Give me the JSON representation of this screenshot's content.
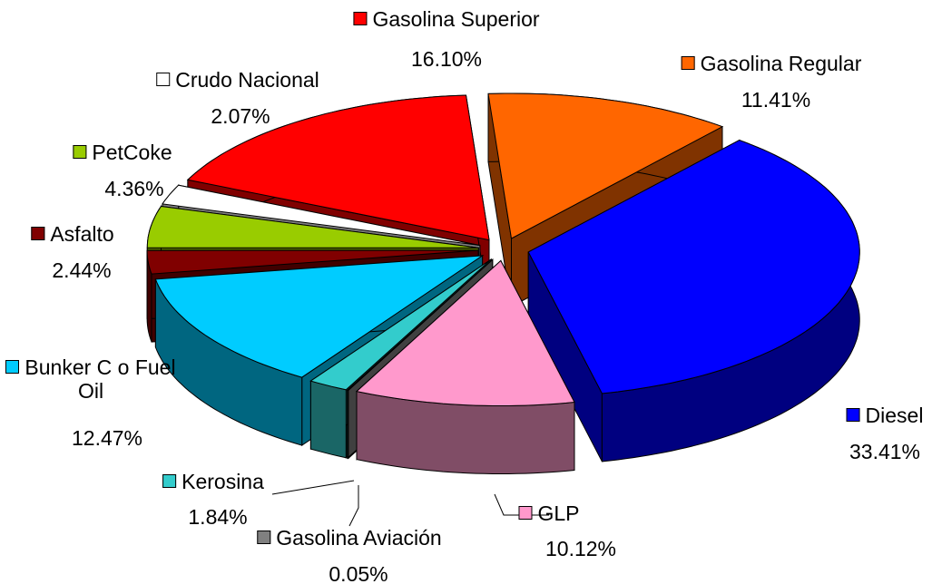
{
  "chart_data": {
    "type": "pie",
    "pie_style": "3d-exploded",
    "categories": [
      "Gasolina Regular",
      "Diesel",
      "GLP",
      "Gasolina Aviación",
      "Kerosina",
      "Bunker C o Fuel Oil",
      "Asfalto",
      "PetCoke",
      "Crudo Nacional",
      "Gasolina Superior"
    ],
    "values": [
      11.41,
      33.41,
      10.12,
      0.05,
      1.84,
      12.47,
      2.44,
      4.36,
      2.07,
      16.1
    ],
    "value_labels": [
      "11.41%",
      "33.41%",
      "10.12%",
      "0.05%",
      "1.84%",
      "12.47%",
      "2.44%",
      "4.36%",
      "2.07%",
      "16.10%"
    ],
    "colors": [
      "#ff6600",
      "#0000ff",
      "#ff99cc",
      "#808080",
      "#33cccc",
      "#00ccff",
      "#800000",
      "#99cc00",
      "#ffffff",
      "#ff0000"
    ]
  }
}
